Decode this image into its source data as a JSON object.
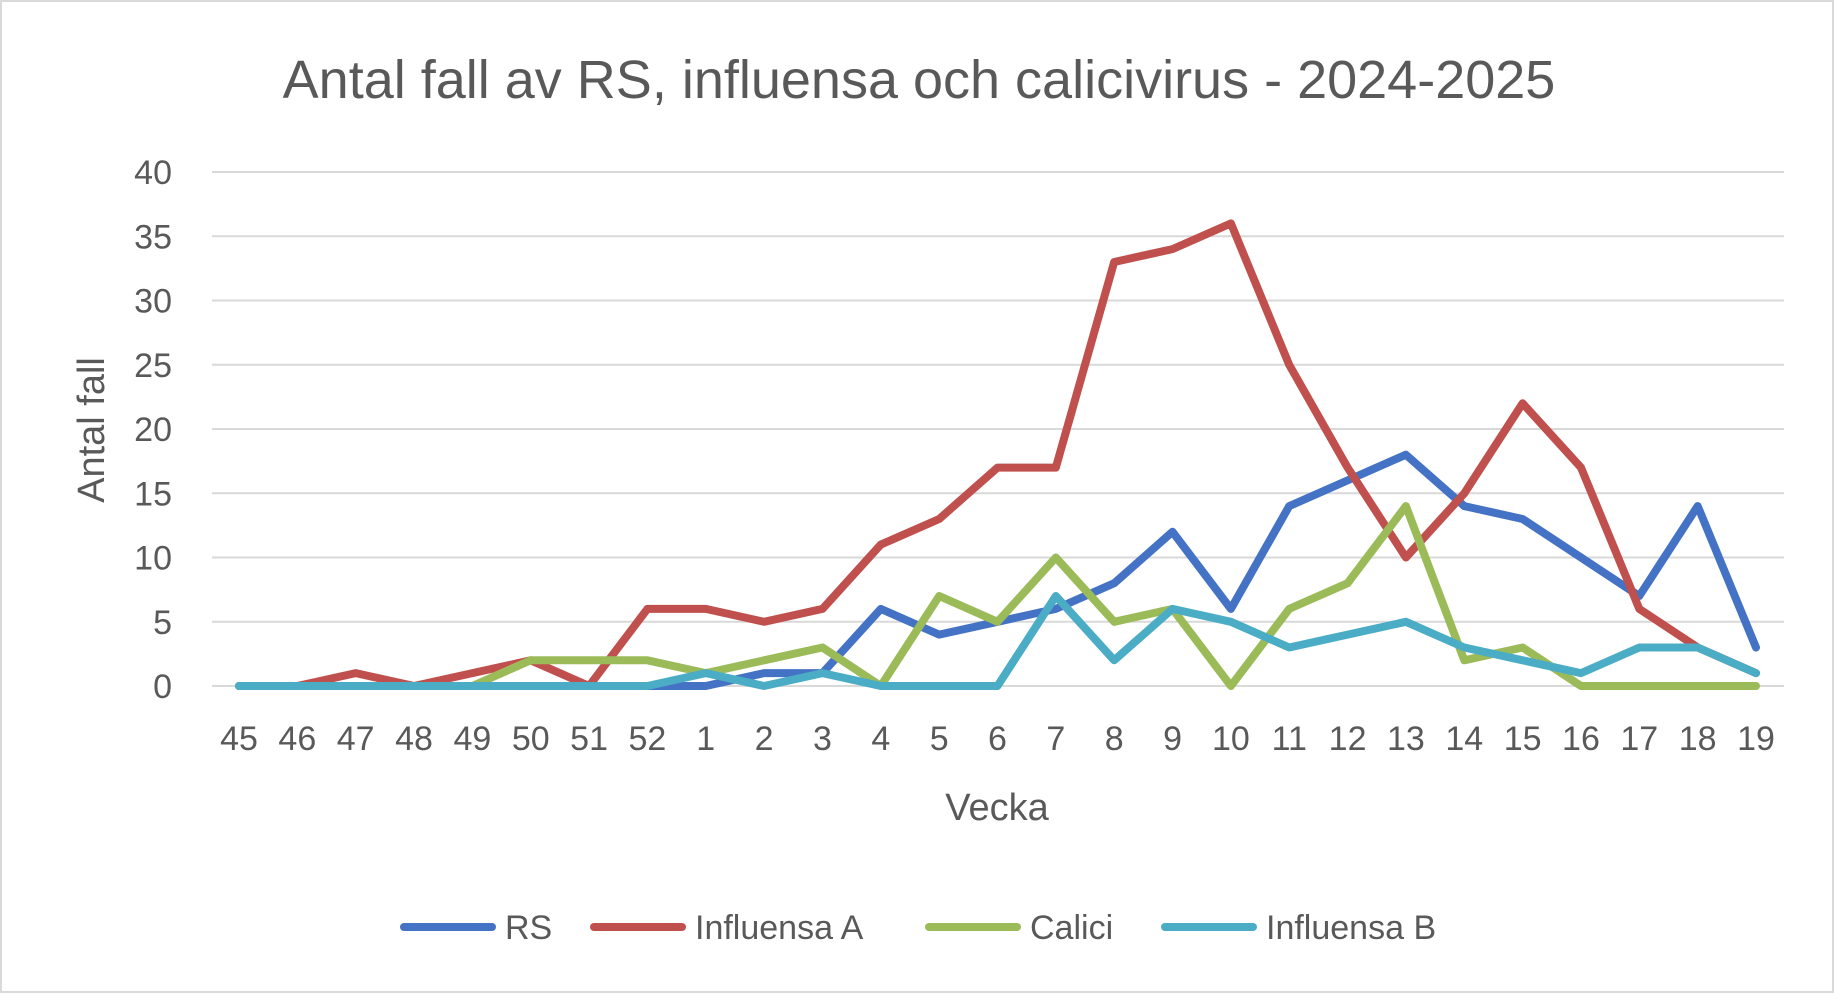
{
  "chart_data": {
    "type": "line",
    "title": "Antal fall av RS, influensa och calicivirus - 2024-2025",
    "xlabel": "Vecka",
    "ylabel": "Antal fall",
    "ylim": [
      0,
      40
    ],
    "yticks": [
      0,
      5,
      10,
      15,
      20,
      25,
      30,
      35,
      40
    ],
    "grid": true,
    "legend_position": "bottom",
    "categories": [
      "45",
      "46",
      "47",
      "48",
      "49",
      "50",
      "51",
      "52",
      "1",
      "2",
      "3",
      "4",
      "5",
      "6",
      "7",
      "8",
      "9",
      "10",
      "11",
      "12",
      "13",
      "14",
      "15",
      "16",
      "17",
      "18",
      "19"
    ],
    "series": [
      {
        "name": "RS",
        "color": "#4472C4",
        "values": [
          0,
          0,
          0,
          0,
          0,
          0,
          0,
          0,
          0,
          1,
          1,
          6,
          4,
          5,
          6,
          8,
          12,
          6,
          14,
          16,
          18,
          14,
          13,
          10,
          7,
          14,
          3
        ]
      },
      {
        "name": "Influensa A",
        "color": "#C0504D",
        "values": [
          0,
          0,
          1,
          0,
          1,
          2,
          0,
          6,
          6,
          5,
          6,
          11,
          13,
          17,
          17,
          33,
          34,
          36,
          25,
          17,
          10,
          15,
          22,
          17,
          6,
          3,
          1
        ]
      },
      {
        "name": "Calici",
        "color": "#9BBB59",
        "values": [
          0,
          0,
          0,
          0,
          0,
          2,
          2,
          2,
          1,
          2,
          3,
          0,
          7,
          5,
          10,
          5,
          6,
          0,
          6,
          8,
          14,
          2,
          3,
          0,
          0,
          0,
          0
        ]
      },
      {
        "name": "Influensa B",
        "color": "#4BACC6",
        "values": [
          0,
          0,
          0,
          0,
          0,
          0,
          0,
          0,
          1,
          0,
          1,
          0,
          0,
          0,
          7,
          2,
          6,
          5,
          3,
          4,
          5,
          3,
          2,
          1,
          3,
          3,
          1
        ]
      }
    ]
  }
}
